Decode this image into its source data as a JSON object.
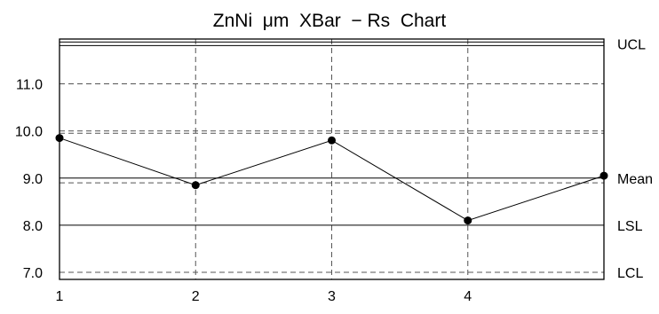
{
  "chart_data": {
    "type": "line",
    "title": "ZnNi  μm  XBar  − Rs  Chart",
    "xlabel": "",
    "ylabel": "",
    "x": [
      1,
      2,
      3,
      4,
      5
    ],
    "x_tick_labels": [
      "1",
      "2",
      "3",
      "4"
    ],
    "y_tick_labels": [
      "7.0",
      "8.0",
      "9.0",
      "10.0",
      "11.0"
    ],
    "series": [
      {
        "values": [
          9.85,
          8.85,
          9.8,
          8.1,
          9.05
        ]
      }
    ],
    "xlim": [
      1,
      5
    ],
    "ylim": [
      6.85,
      11.95
    ],
    "grid": true,
    "limit_lines": [
      {
        "label": "UCL",
        "value": 11.85,
        "style": "double"
      },
      {
        "label": "Mean",
        "value": 9.0,
        "style": "solid"
      },
      {
        "label": "LSL",
        "value": 8.0,
        "style": "solid"
      },
      {
        "label": "LCL",
        "value": 7.0,
        "style": "dashed"
      }
    ],
    "extra_dashed_lines": [
      8.9,
      9.95
    ],
    "colors": {
      "line": "#000000",
      "grid": "#555555",
      "marker": "#000000"
    }
  }
}
